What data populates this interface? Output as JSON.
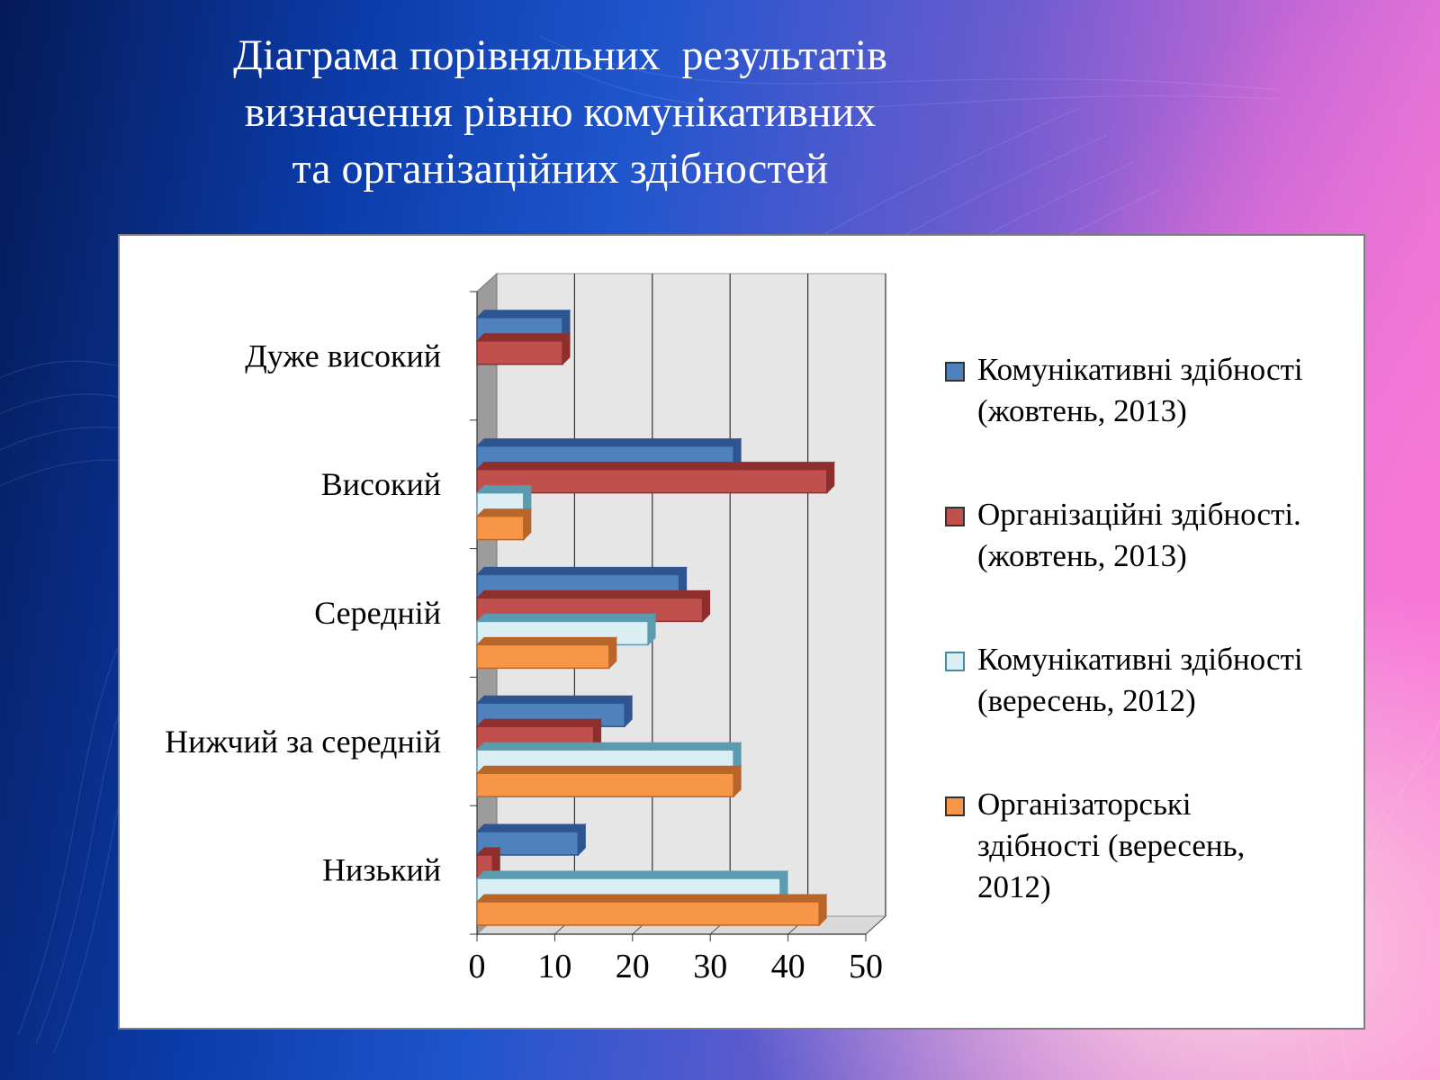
{
  "title_lines": [
    "Діаграма порівняльних  результатів",
    "визначення рівню комунікативних",
    "та організаційних здібностей"
  ],
  "colors": {
    "series": [
      "#4f81bd",
      "#c0504d",
      "#dbeef4",
      "#f79646"
    ],
    "series_dark": [
      "#2e5590",
      "#8e2f2d",
      "#5b9bb0",
      "#b8652b"
    ]
  },
  "legend": [
    {
      "lines": [
        "Комунікативні здібності",
        "(жовтень, 2013)"
      ]
    },
    {
      "lines": [
        "Організаційні здібності.",
        "(жовтень, 2013)"
      ]
    },
    {
      "lines": [
        "Комунікативні здібності",
        "(вересень, 2012)"
      ]
    },
    {
      "lines": [
        "Організаторські",
        "здібності (вересень,",
        "2012)"
      ]
    }
  ],
  "chart_data": {
    "type": "bar",
    "orientation": "horizontal",
    "style": "3d-clustered",
    "categories": [
      "Низький",
      "Нижчий за середній",
      "Середній",
      "Високий",
      "Дуже високий"
    ],
    "series": [
      {
        "name": "Комунікативні здібності (жовтень, 2013)",
        "values": [
          13,
          19,
          26,
          33,
          11
        ]
      },
      {
        "name": "Організаційні здібності. (жовтень, 2013)",
        "values": [
          2,
          15,
          29,
          45,
          11
        ]
      },
      {
        "name": "Комунікативні здібності (вересень, 2012)",
        "values": [
          39,
          33,
          22,
          6,
          0
        ]
      },
      {
        "name": "Організаторські здібності (вересень, 2012)",
        "values": [
          44,
          33,
          17,
          6,
          0
        ]
      }
    ],
    "x_ticks": [
      "0",
      "10",
      "20",
      "30",
      "40",
      "50"
    ],
    "xlim": [
      0,
      50
    ],
    "grid": true,
    "legend_position": "right"
  }
}
